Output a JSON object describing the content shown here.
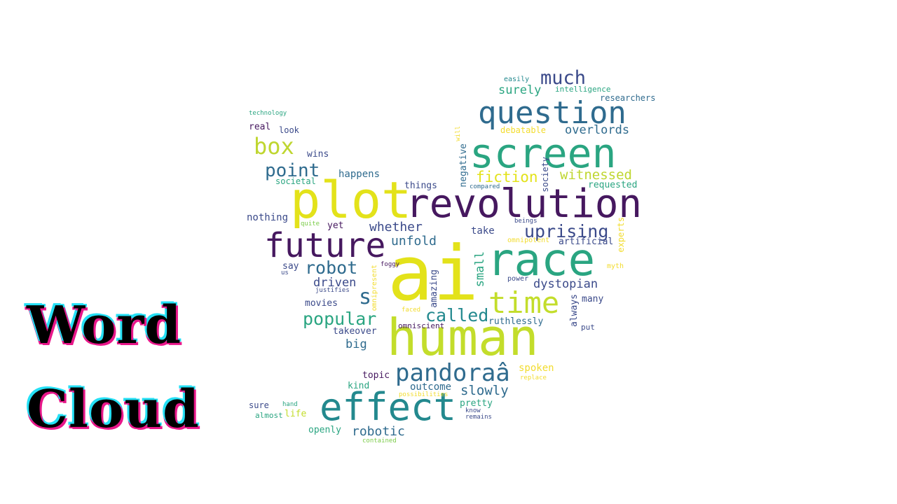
{
  "heading": {
    "line1": "Word",
    "line2": "Cloud"
  },
  "palette": {
    "purple": "#46185f",
    "indigo": "#3b4a8a",
    "blue": "#2f6b8e",
    "teal": "#23898e",
    "green": "#2aa581",
    "lime": "#7ccc4a",
    "yellow": "#e3e21a",
    "gold": "#f2dc2e"
  },
  "words": [
    {
      "text": "ai",
      "color": "#e3e21a"
    },
    {
      "text": "human",
      "color": "#c3dd2b"
    },
    {
      "text": "plot",
      "color": "#e3e21a"
    },
    {
      "text": "revolution",
      "color": "#46185f"
    },
    {
      "text": "screen",
      "color": "#2aa581"
    },
    {
      "text": "race",
      "color": "#2aa581"
    },
    {
      "text": "effect",
      "color": "#23898e"
    },
    {
      "text": "future",
      "color": "#46185f"
    },
    {
      "text": "question",
      "color": "#2f6b8e"
    },
    {
      "text": "time",
      "color": "#c3dd2b"
    },
    {
      "text": "pandoraâ",
      "color": "#2f6b8e"
    },
    {
      "text": "box",
      "color": "#bfd630"
    },
    {
      "text": "much",
      "color": "#3b4a8a"
    },
    {
      "text": "s",
      "color": "#2f6b8e"
    },
    {
      "text": "point",
      "color": "#2f6b8e"
    },
    {
      "text": "uprising",
      "color": "#3b4a8a"
    },
    {
      "text": "called",
      "color": "#23898e"
    },
    {
      "text": "robot",
      "color": "#2f6b8e"
    },
    {
      "text": "popular",
      "color": "#2aa581"
    },
    {
      "text": "fiction",
      "color": "#e3e21a"
    },
    {
      "text": "witnessed",
      "color": "#bfd630"
    },
    {
      "text": "overlords",
      "color": "#2f6b8e"
    },
    {
      "text": "surely",
      "color": "#2aa581"
    },
    {
      "text": "dystopian",
      "color": "#3b4a8a"
    },
    {
      "text": "whether",
      "color": "#3b4a8a"
    },
    {
      "text": "unfold",
      "color": "#2f6b8e"
    },
    {
      "text": "slowly",
      "color": "#2f6b8e"
    },
    {
      "text": "robotic",
      "color": "#2f6b8e"
    },
    {
      "text": "driven",
      "color": "#3b4a8a"
    },
    {
      "text": "small",
      "color": "#2aa581"
    },
    {
      "text": "big",
      "color": "#2f6b8e"
    },
    {
      "text": "happens",
      "color": "#2f6b8e"
    },
    {
      "text": "nothing",
      "color": "#3b4a8a"
    },
    {
      "text": "take",
      "color": "#3b4a8a"
    },
    {
      "text": "things",
      "color": "#3b4a8a"
    },
    {
      "text": "yet",
      "color": "#46185f"
    },
    {
      "text": "wins",
      "color": "#3b4a8a"
    },
    {
      "text": "real",
      "color": "#46185f"
    },
    {
      "text": "look",
      "color": "#3b4a8a"
    },
    {
      "text": "debatable",
      "color": "#f2dc2e"
    },
    {
      "text": "intelligence",
      "color": "#2aa581"
    },
    {
      "text": "researchers",
      "color": "#2f6b8e"
    },
    {
      "text": "easily",
      "color": "#23898e"
    },
    {
      "text": "technology",
      "color": "#2aa581"
    },
    {
      "text": "societal",
      "color": "#2aa581"
    },
    {
      "text": "requested",
      "color": "#2aa581"
    },
    {
      "text": "society",
      "color": "#3b4a8a"
    },
    {
      "text": "negative",
      "color": "#2f6b8e"
    },
    {
      "text": "will",
      "color": "#f2dc2e"
    },
    {
      "text": "compared",
      "color": "#2f6b8e"
    },
    {
      "text": "quite",
      "color": "#7ccc4a"
    },
    {
      "text": "beings",
      "color": "#3b4a8a"
    },
    {
      "text": "omnipotent",
      "color": "#f2dc2e"
    },
    {
      "text": "artificial",
      "color": "#3b4a8a"
    },
    {
      "text": "experts",
      "color": "#f2dc2e"
    },
    {
      "text": "say",
      "color": "#3b4a8a"
    },
    {
      "text": "us",
      "color": "#3b4a8a"
    },
    {
      "text": "foggy",
      "color": "#46185f"
    },
    {
      "text": "omnipresent",
      "color": "#f2dc2e"
    },
    {
      "text": "amazing",
      "color": "#3b4a8a"
    },
    {
      "text": "power",
      "color": "#3b4a8a"
    },
    {
      "text": "myth",
      "color": "#f2dc2e"
    },
    {
      "text": "justifies",
      "color": "#3b4a8a"
    },
    {
      "text": "movies",
      "color": "#3b4a8a"
    },
    {
      "text": "faced",
      "color": "#f2dc2e"
    },
    {
      "text": "always",
      "color": "#3b4a8a"
    },
    {
      "text": "many",
      "color": "#3b4a8a"
    },
    {
      "text": "ruthlessly",
      "color": "#2f6b8e"
    },
    {
      "text": "omniscient",
      "color": "#46185f"
    },
    {
      "text": "put",
      "color": "#3b4a8a"
    },
    {
      "text": "takeover",
      "color": "#3b4a8a"
    },
    {
      "text": "spoken",
      "color": "#f2dc2e"
    },
    {
      "text": "replace",
      "color": "#f2dc2e"
    },
    {
      "text": "topic",
      "color": "#46185f"
    },
    {
      "text": "outcome",
      "color": "#2f6b8e"
    },
    {
      "text": "kind",
      "color": "#2aa581"
    },
    {
      "text": "possibilities",
      "color": "#f2dc2e"
    },
    {
      "text": "pretty",
      "color": "#2aa581"
    },
    {
      "text": "sure",
      "color": "#3b4a8a"
    },
    {
      "text": "hand",
      "color": "#2aa581"
    },
    {
      "text": "almost",
      "color": "#2aa581"
    },
    {
      "text": "life",
      "color": "#c3dd2b"
    },
    {
      "text": "know",
      "color": "#3b4a8a"
    },
    {
      "text": "remains",
      "color": "#3b4a8a"
    },
    {
      "text": "openly",
      "color": "#2aa581"
    },
    {
      "text": "contained",
      "color": "#7ccc4a"
    }
  ]
}
